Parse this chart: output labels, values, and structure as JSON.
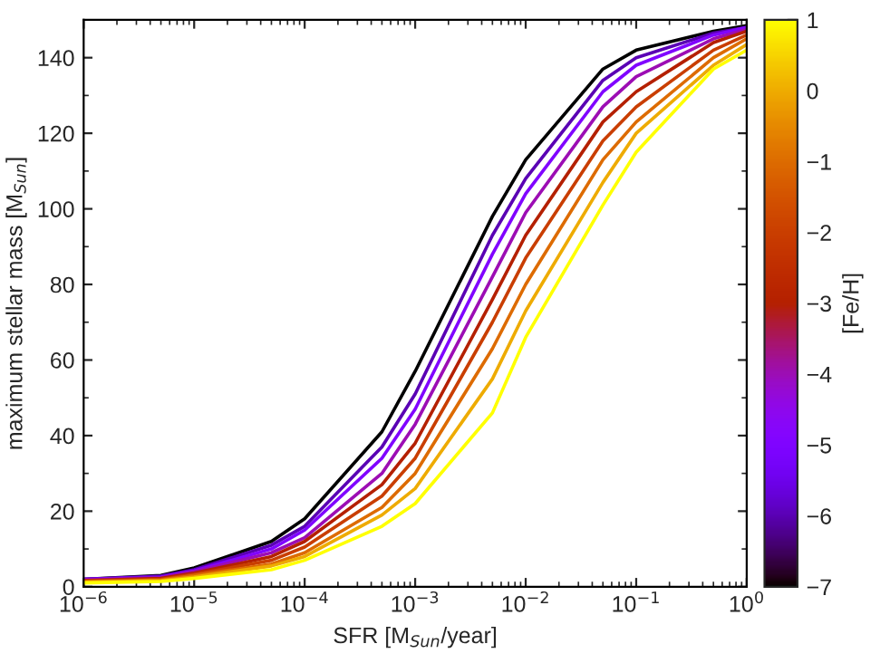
{
  "chart_data": {
    "type": "line",
    "xlabel": "SFR [M$_{Sun}$/year]",
    "ylabel": "maximum stellar mass [M$_{Sun}$]",
    "clabel": "[Fe/H]",
    "x": [
      1e-06,
      5e-06,
      1e-05,
      5e-05,
      0.0001,
      0.0005,
      0.001,
      0.005,
      0.01,
      0.05,
      0.1,
      0.5,
      1
    ],
    "series": [
      {
        "color": "#000000",
        "values": [
          2,
          3,
          5,
          12,
          18,
          41,
          57,
          98,
          113,
          137,
          142,
          147,
          148.5
        ]
      },
      {
        "color": "#5a00b4",
        "values": [
          2,
          2.8,
          4.5,
          11,
          16,
          37,
          51,
          93,
          108,
          134,
          140,
          146.5,
          148
        ]
      },
      {
        "color": "#8004ff",
        "values": [
          2,
          2.6,
          4.2,
          10,
          15,
          34,
          47,
          88,
          104,
          131,
          138,
          146,
          148
        ]
      },
      {
        "color": "#9c0db4",
        "values": [
          1.8,
          2.4,
          4,
          9,
          13,
          30,
          43,
          82,
          99,
          127,
          135,
          145,
          147.5
        ]
      },
      {
        "color": "#b42000",
        "values": [
          1.6,
          2.2,
          3.6,
          8,
          12,
          27,
          38,
          76,
          93,
          123,
          131,
          144,
          147
        ]
      },
      {
        "color": "#c93e00",
        "values": [
          1.5,
          2,
          3.3,
          7,
          10.5,
          24,
          34,
          70,
          87,
          118,
          127,
          142,
          146
        ]
      },
      {
        "color": "#dd6b00",
        "values": [
          1.3,
          1.8,
          3,
          6,
          9,
          21,
          30,
          63,
          80,
          113,
          123,
          140,
          145
        ]
      },
      {
        "color": "#eeab00",
        "values": [
          1.2,
          1.6,
          2.6,
          5.5,
          8,
          19,
          26,
          55,
          73,
          107,
          120,
          138,
          143.5
        ]
      },
      {
        "color": "#ffff00",
        "values": [
          1,
          1.4,
          2.2,
          4.5,
          7,
          16,
          22,
          46,
          66,
          101,
          115,
          137,
          142
        ]
      }
    ],
    "log": "x",
    "grid": false,
    "legend": false,
    "marker": "none",
    "line_style": "solid",
    "xlim": [
      1e-06,
      1
    ],
    "xticks": [
      {
        "value": 1e-06,
        "label": "10$^{−6}$"
      },
      {
        "value": 1e-05,
        "label": "10$^{−5}$"
      },
      {
        "value": 0.0001,
        "label": "10$^{−4}$"
      },
      {
        "value": 0.001,
        "label": "10$^{−3}$"
      },
      {
        "value": 0.01,
        "label": "10$^{−2}$"
      },
      {
        "value": 0.1,
        "label": "10$^{−1}$"
      },
      {
        "value": 1,
        "label": "10$^{0}$"
      }
    ],
    "ylim": [
      0,
      150
    ],
    "yticks": [
      0,
      20,
      40,
      60,
      80,
      100,
      120,
      140
    ],
    "clim": [
      -7,
      1
    ],
    "cticks": [
      {
        "value": -7,
        "label": "−7"
      },
      {
        "value": -6,
        "label": "−6"
      },
      {
        "value": -5,
        "label": "−5"
      },
      {
        "value": -4,
        "label": "−4"
      },
      {
        "value": -3,
        "label": "−3"
      },
      {
        "value": -2,
        "label": "−2"
      },
      {
        "value": -1,
        "label": "−1"
      },
      {
        "value": 0,
        "label": "0"
      },
      {
        "value": 1,
        "label": "1"
      }
    ]
  }
}
